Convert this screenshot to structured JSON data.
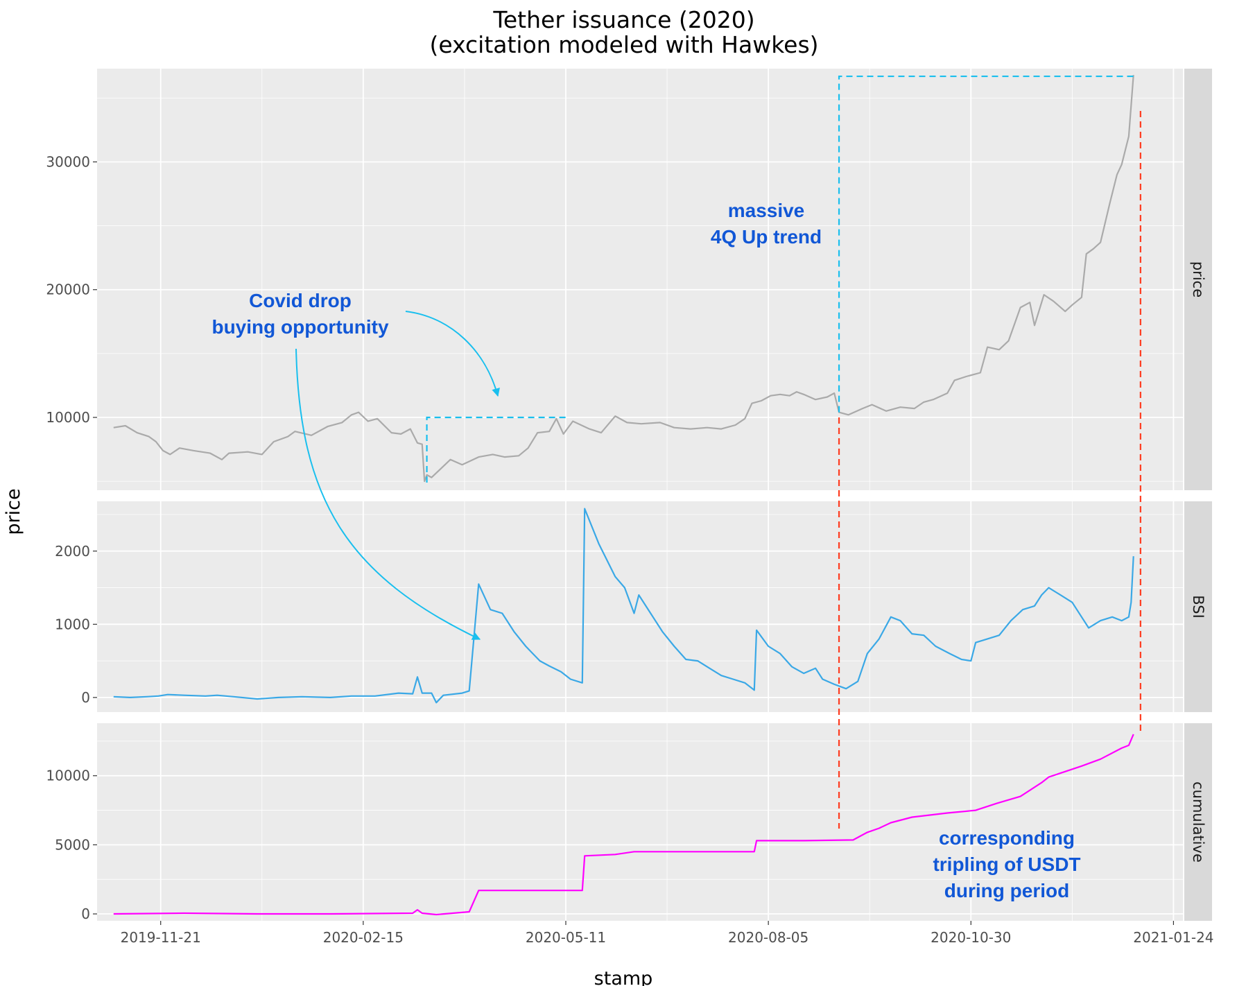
{
  "chart_data": {
    "type": "line",
    "title": "Tether issuance (2020)",
    "subtitle": "(excitation modeled with Hawkes)",
    "xlabel": "stamp",
    "ylabel": "price",
    "x_type": "date",
    "xlim": [
      "2019-10-25",
      "2021-01-28"
    ],
    "x_ticks": [
      "2019-11-21",
      "2020-02-15",
      "2020-05-11",
      "2020-08-05",
      "2020-10-30",
      "2021-01-24"
    ],
    "grid": true,
    "legend": "none",
    "colors": {
      "panel_bg": "#ebebeb",
      "grid": "#ffffff",
      "strip_bg": "#d9d9d9",
      "price": "#aaaaaa",
      "bsi": "#3aa8e6",
      "cumulative": "#ff00ff",
      "annotation_text": "#1157d6",
      "arrow": "#19bfee",
      "blue_dashed": "#19bfee",
      "red_dashed": "#ff3b1f"
    },
    "facets": [
      {
        "strip": "price",
        "ylim": [
          4300,
          37300
        ],
        "y_ticks": [
          10000,
          20000,
          30000
        ],
        "color": "price",
        "points": [
          [
            "2019-11-01",
            9200
          ],
          [
            "2019-11-06",
            9350
          ],
          [
            "2019-11-11",
            8800
          ],
          [
            "2019-11-16",
            8500
          ],
          [
            "2019-11-19",
            8100
          ],
          [
            "2019-11-22",
            7400
          ],
          [
            "2019-11-25",
            7100
          ],
          [
            "2019-11-29",
            7600
          ],
          [
            "2019-12-05",
            7400
          ],
          [
            "2019-12-12",
            7200
          ],
          [
            "2019-12-17",
            6700
          ],
          [
            "2019-12-20",
            7200
          ],
          [
            "2019-12-28",
            7300
          ],
          [
            "2020-01-03",
            7100
          ],
          [
            "2020-01-08",
            8100
          ],
          [
            "2020-01-14",
            8500
          ],
          [
            "2020-01-17",
            8900
          ],
          [
            "2020-01-24",
            8600
          ],
          [
            "2020-01-31",
            9300
          ],
          [
            "2020-02-06",
            9600
          ],
          [
            "2020-02-10",
            10200
          ],
          [
            "2020-02-13",
            10400
          ],
          [
            "2020-02-17",
            9700
          ],
          [
            "2020-02-21",
            9900
          ],
          [
            "2020-02-27",
            8800
          ],
          [
            "2020-03-02",
            8700
          ],
          [
            "2020-03-06",
            9100
          ],
          [
            "2020-03-09",
            8000
          ],
          [
            "2020-03-11",
            7900
          ],
          [
            "2020-03-12",
            5000
          ],
          [
            "2020-03-13",
            5500
          ],
          [
            "2020-03-15",
            5300
          ],
          [
            "2020-03-19",
            6000
          ],
          [
            "2020-03-23",
            6700
          ],
          [
            "2020-03-28",
            6300
          ],
          [
            "2020-04-04",
            6900
          ],
          [
            "2020-04-10",
            7100
          ],
          [
            "2020-04-15",
            6900
          ],
          [
            "2020-04-21",
            7000
          ],
          [
            "2020-04-25",
            7600
          ],
          [
            "2020-04-29",
            8800
          ],
          [
            "2020-05-04",
            8900
          ],
          [
            "2020-05-07",
            9900
          ],
          [
            "2020-05-10",
            8700
          ],
          [
            "2020-05-14",
            9700
          ],
          [
            "2020-05-21",
            9100
          ],
          [
            "2020-05-26",
            8800
          ],
          [
            "2020-06-01",
            10100
          ],
          [
            "2020-06-06",
            9600
          ],
          [
            "2020-06-12",
            9500
          ],
          [
            "2020-06-20",
            9600
          ],
          [
            "2020-06-26",
            9200
          ],
          [
            "2020-07-03",
            9100
          ],
          [
            "2020-07-10",
            9200
          ],
          [
            "2020-07-16",
            9100
          ],
          [
            "2020-07-22",
            9400
          ],
          [
            "2020-07-26",
            9900
          ],
          [
            "2020-07-29",
            11100
          ],
          [
            "2020-08-02",
            11300
          ],
          [
            "2020-08-06",
            11700
          ],
          [
            "2020-08-10",
            11800
          ],
          [
            "2020-08-14",
            11700
          ],
          [
            "2020-08-17",
            12000
          ],
          [
            "2020-08-20",
            11800
          ],
          [
            "2020-08-25",
            11400
          ],
          [
            "2020-08-30",
            11600
          ],
          [
            "2020-09-02",
            11900
          ],
          [
            "2020-09-04",
            10400
          ],
          [
            "2020-09-08",
            10200
          ],
          [
            "2020-09-14",
            10700
          ],
          [
            "2020-09-18",
            11000
          ],
          [
            "2020-09-24",
            10500
          ],
          [
            "2020-09-30",
            10800
          ],
          [
            "2020-10-06",
            10700
          ],
          [
            "2020-10-10",
            11200
          ],
          [
            "2020-10-14",
            11400
          ],
          [
            "2020-10-20",
            11900
          ],
          [
            "2020-10-23",
            12900
          ],
          [
            "2020-10-28",
            13200
          ],
          [
            "2020-11-03",
            13500
          ],
          [
            "2020-11-06",
            15500
          ],
          [
            "2020-11-11",
            15300
          ],
          [
            "2020-11-15",
            16000
          ],
          [
            "2020-11-20",
            18600
          ],
          [
            "2020-11-24",
            19000
          ],
          [
            "2020-11-26",
            17200
          ],
          [
            "2020-11-30",
            19600
          ],
          [
            "2020-12-04",
            19100
          ],
          [
            "2020-12-09",
            18300
          ],
          [
            "2020-12-12",
            18800
          ],
          [
            "2020-12-16",
            19400
          ],
          [
            "2020-12-18",
            22800
          ],
          [
            "2020-12-21",
            23200
          ],
          [
            "2020-12-24",
            23700
          ],
          [
            "2020-12-28",
            26800
          ],
          [
            "2020-12-31",
            29000
          ],
          [
            "2021-01-02",
            29800
          ],
          [
            "2021-01-05",
            32000
          ],
          [
            "2021-01-07",
            36800
          ]
        ]
      },
      {
        "strip": "BSI",
        "ylim": [
          -200,
          2680
        ],
        "y_ticks": [
          0,
          1000,
          2000
        ],
        "color": "bsi",
        "points": [
          [
            "2019-11-01",
            10
          ],
          [
            "2019-11-08",
            0
          ],
          [
            "2019-11-15",
            10
          ],
          [
            "2019-11-20",
            20
          ],
          [
            "2019-11-24",
            40
          ],
          [
            "2019-12-01",
            30
          ],
          [
            "2019-12-10",
            20
          ],
          [
            "2019-12-15",
            30
          ],
          [
            "2019-12-22",
            10
          ],
          [
            "2020-01-01",
            -20
          ],
          [
            "2020-01-10",
            0
          ],
          [
            "2020-01-20",
            10
          ],
          [
            "2020-02-01",
            0
          ],
          [
            "2020-02-10",
            20
          ],
          [
            "2020-02-20",
            20
          ],
          [
            "2020-03-01",
            60
          ],
          [
            "2020-03-07",
            50
          ],
          [
            "2020-03-09",
            280
          ],
          [
            "2020-03-11",
            60
          ],
          [
            "2020-03-15",
            60
          ],
          [
            "2020-03-17",
            -70
          ],
          [
            "2020-03-20",
            30
          ],
          [
            "2020-03-28",
            60
          ],
          [
            "2020-03-31",
            90
          ],
          [
            "2020-04-04",
            1550
          ],
          [
            "2020-04-09",
            1200
          ],
          [
            "2020-04-14",
            1150
          ],
          [
            "2020-04-19",
            900
          ],
          [
            "2020-04-24",
            700
          ],
          [
            "2020-04-27",
            600
          ],
          [
            "2020-04-30",
            500
          ],
          [
            "2020-05-04",
            430
          ],
          [
            "2020-05-09",
            350
          ],
          [
            "2020-05-13",
            250
          ],
          [
            "2020-05-18",
            200
          ],
          [
            "2020-05-19",
            2580
          ],
          [
            "2020-05-25",
            2100
          ],
          [
            "2020-06-01",
            1650
          ],
          [
            "2020-06-05",
            1500
          ],
          [
            "2020-06-09",
            1150
          ],
          [
            "2020-06-11",
            1400
          ],
          [
            "2020-06-16",
            1150
          ],
          [
            "2020-06-21",
            900
          ],
          [
            "2020-06-26",
            700
          ],
          [
            "2020-07-01",
            520
          ],
          [
            "2020-07-06",
            500
          ],
          [
            "2020-07-11",
            400
          ],
          [
            "2020-07-16",
            300
          ],
          [
            "2020-07-21",
            250
          ],
          [
            "2020-07-26",
            200
          ],
          [
            "2020-07-30",
            100
          ],
          [
            "2020-07-31",
            920
          ],
          [
            "2020-08-05",
            700
          ],
          [
            "2020-08-10",
            600
          ],
          [
            "2020-08-15",
            420
          ],
          [
            "2020-08-20",
            330
          ],
          [
            "2020-08-25",
            400
          ],
          [
            "2020-08-28",
            250
          ],
          [
            "2020-09-02",
            180
          ],
          [
            "2020-09-07",
            120
          ],
          [
            "2020-09-12",
            220
          ],
          [
            "2020-09-16",
            600
          ],
          [
            "2020-09-21",
            800
          ],
          [
            "2020-09-26",
            1100
          ],
          [
            "2020-09-30",
            1050
          ],
          [
            "2020-10-05",
            870
          ],
          [
            "2020-10-10",
            850
          ],
          [
            "2020-10-15",
            700
          ],
          [
            "2020-10-21",
            600
          ],
          [
            "2020-10-26",
            520
          ],
          [
            "2020-10-30",
            500
          ],
          [
            "2020-11-01",
            750
          ],
          [
            "2020-11-06",
            800
          ],
          [
            "2020-11-11",
            850
          ],
          [
            "2020-11-16",
            1050
          ],
          [
            "2020-11-21",
            1200
          ],
          [
            "2020-11-26",
            1250
          ],
          [
            "2020-11-29",
            1400
          ],
          [
            "2020-12-02",
            1500
          ],
          [
            "2020-12-07",
            1400
          ],
          [
            "2020-12-12",
            1300
          ],
          [
            "2020-12-16",
            1100
          ],
          [
            "2020-12-19",
            950
          ],
          [
            "2020-12-24",
            1050
          ],
          [
            "2020-12-29",
            1100
          ],
          [
            "2021-01-02",
            1050
          ],
          [
            "2021-01-05",
            1100
          ],
          [
            "2021-01-06",
            1300
          ],
          [
            "2021-01-07",
            1930
          ]
        ]
      },
      {
        "strip": "cumulative",
        "ylim": [
          -500,
          13800
        ],
        "y_ticks": [
          0,
          5000,
          10000
        ],
        "color": "cumulative",
        "points": [
          [
            "2019-11-01",
            0
          ],
          [
            "2019-12-01",
            50
          ],
          [
            "2020-01-01",
            0
          ],
          [
            "2020-02-01",
            0
          ],
          [
            "2020-03-07",
            50
          ],
          [
            "2020-03-09",
            300
          ],
          [
            "2020-03-11",
            50
          ],
          [
            "2020-03-17",
            -50
          ],
          [
            "2020-03-31",
            150
          ],
          [
            "2020-04-04",
            1700
          ],
          [
            "2020-05-01",
            1700
          ],
          [
            "2020-05-18",
            1700
          ],
          [
            "2020-05-19",
            4200
          ],
          [
            "2020-06-01",
            4300
          ],
          [
            "2020-06-09",
            4500
          ],
          [
            "2020-07-01",
            4500
          ],
          [
            "2020-07-30",
            4500
          ],
          [
            "2020-07-31",
            5300
          ],
          [
            "2020-08-20",
            5300
          ],
          [
            "2020-09-10",
            5350
          ],
          [
            "2020-09-16",
            5900
          ],
          [
            "2020-09-21",
            6200
          ],
          [
            "2020-09-26",
            6600
          ],
          [
            "2020-10-05",
            7000
          ],
          [
            "2020-10-20",
            7300
          ],
          [
            "2020-11-01",
            7500
          ],
          [
            "2020-11-10",
            8000
          ],
          [
            "2020-11-20",
            8500
          ],
          [
            "2020-11-29",
            9500
          ],
          [
            "2020-12-02",
            9900
          ],
          [
            "2020-12-16",
            10700
          ],
          [
            "2020-12-24",
            11200
          ],
          [
            "2021-01-02",
            12000
          ],
          [
            "2021-01-05",
            12200
          ],
          [
            "2021-01-07",
            13000
          ]
        ]
      }
    ],
    "annotations": [
      {
        "text": "Covid drop",
        "line2": "buying opportunity"
      },
      {
        "text": "massive",
        "line2": "4Q Up trend"
      },
      {
        "text": "corresponding",
        "line2": "tripling of USDT",
        "line3": "during period"
      }
    ]
  }
}
